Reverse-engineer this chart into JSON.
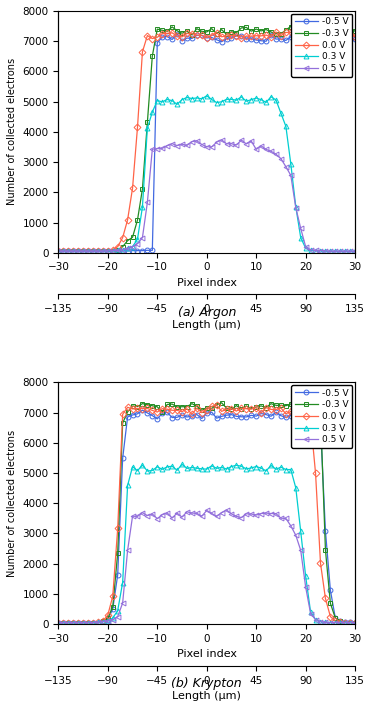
{
  "title_a": "(a) Argon",
  "title_b": "(b) Krypton",
  "ylabel": "Number of collected electrons",
  "xlabel_top": "Pixel index",
  "xlabel_bot": "Length (μm)",
  "ylim": [
    0,
    8000
  ],
  "yticks": [
    0,
    1000,
    2000,
    3000,
    4000,
    5000,
    6000,
    7000,
    8000
  ],
  "xlim_pixel": [
    -30,
    30
  ],
  "xticks_pixel": [
    -30,
    -20,
    -10,
    0,
    10,
    20,
    30
  ],
  "xlim_um": [
    -135,
    135
  ],
  "xticks_um": [
    -135,
    -90,
    -45,
    0,
    45,
    90,
    135
  ],
  "legend_labels": [
    "-0.5 V",
    "-0.3 V",
    "0.0 V",
    "0.3 V",
    "0.5 V"
  ],
  "colors": [
    "#4169E1",
    "#228B22",
    "#FF6347",
    "#00CED1",
    "#9370DB"
  ],
  "markers": [
    "o",
    "s",
    "D",
    "^",
    "<"
  ],
  "argon": {
    "neg05": {
      "x": [
        -30,
        -29,
        -28,
        -27,
        -26,
        -25,
        -24,
        -23,
        -22,
        -21,
        -20,
        -19,
        -18,
        -17,
        -16,
        -15,
        -14,
        -13,
        -12,
        -11,
        -10,
        -9,
        -8,
        -7,
        -6,
        -5,
        -4,
        -3,
        -2,
        -1,
        0,
        1,
        2,
        3,
        4,
        5,
        6,
        7,
        8,
        9,
        10,
        11,
        12,
        13,
        14,
        15,
        16,
        17,
        18,
        19,
        20,
        21,
        22,
        23,
        24,
        25,
        26,
        27,
        28,
        29,
        30
      ],
      "y": [
        50,
        50,
        50,
        50,
        50,
        50,
        50,
        50,
        50,
        50,
        60,
        60,
        60,
        60,
        60,
        70,
        70,
        70,
        80,
        80,
        7100,
        7100,
        7100,
        7100,
        7100,
        7100,
        7100,
        7100,
        7100,
        7100,
        7100,
        7100,
        7100,
        7100,
        7100,
        7100,
        7100,
        7100,
        7100,
        7100,
        7100,
        7100,
        7100,
        7100,
        7100,
        7100,
        7100,
        7100,
        7100,
        7100,
        7100,
        7100,
        7100,
        7100,
        7100,
        7100,
        7100,
        7100,
        7100,
        7100,
        7100
      ]
    },
    "neg03": {
      "x": [
        -30,
        -29,
        -28,
        -27,
        -26,
        -25,
        -24,
        -23,
        -22,
        -21,
        -20,
        -19,
        -18,
        -17,
        -16,
        -15,
        -14,
        -13,
        -12,
        -11,
        -10,
        -9,
        -8,
        -7,
        -6,
        -5,
        -4,
        -3,
        -2,
        -1,
        0,
        1,
        2,
        3,
        4,
        5,
        6,
        7,
        8,
        9,
        10,
        11,
        12,
        13,
        14,
        15,
        16,
        17,
        18,
        19,
        20,
        21,
        22,
        23,
        24,
        25,
        26,
        27,
        28,
        29,
        30
      ],
      "y": [
        50,
        50,
        50,
        50,
        50,
        50,
        50,
        50,
        50,
        50,
        60,
        70,
        100,
        200,
        400,
        600,
        1050,
        2100,
        4300,
        6600,
        7300,
        7350,
        7350,
        7350,
        7350,
        7350,
        7350,
        7350,
        7350,
        7350,
        7350,
        7350,
        7350,
        7350,
        7350,
        7350,
        7350,
        7350,
        7350,
        7350,
        7350,
        7350,
        7350,
        7350,
        7350,
        7350,
        7350,
        7350,
        7350,
        7350,
        7350,
        7350,
        7350,
        7350,
        7350,
        7350,
        7350,
        7350,
        7350,
        7350,
        7350
      ]
    },
    "zero": {
      "x": [
        -30,
        -29,
        -28,
        -27,
        -26,
        -25,
        -24,
        -23,
        -22,
        -21,
        -20,
        -19,
        -18,
        -17,
        -16,
        -15,
        -14,
        -13,
        -12,
        -11,
        -10,
        -9,
        -8,
        -7,
        -6,
        -5,
        -4,
        -3,
        -2,
        -1,
        0,
        1,
        2,
        3,
        4,
        5,
        6,
        7,
        8,
        9,
        10,
        11,
        12,
        13,
        14,
        15,
        16,
        17,
        18,
        19,
        20,
        21,
        22,
        23,
        24,
        25,
        26,
        27,
        28,
        29,
        30
      ],
      "y": [
        50,
        50,
        50,
        50,
        50,
        50,
        50,
        50,
        50,
        50,
        70,
        100,
        200,
        500,
        1100,
        2100,
        4100,
        6600,
        7200,
        7200,
        7200,
        7200,
        7200,
        7200,
        7200,
        7200,
        7200,
        7200,
        7200,
        7200,
        7200,
        7200,
        7200,
        7200,
        7200,
        7200,
        7200,
        7200,
        7200,
        7200,
        7200,
        7200,
        7200,
        7200,
        7200,
        7200,
        7200,
        7200,
        7200,
        7200,
        7200,
        7200,
        7200,
        7200,
        7200,
        7200,
        7200,
        7200,
        7200,
        7200,
        7200
      ]
    },
    "pos03": {
      "x": [
        -30,
        -29,
        -28,
        -27,
        -26,
        -25,
        -24,
        -23,
        -22,
        -21,
        -20,
        -19,
        -18,
        -17,
        -16,
        -15,
        -14,
        -13,
        -12,
        -11,
        -10,
        -9,
        -8,
        -7,
        -6,
        -5,
        -4,
        -3,
        -2,
        -1,
        0,
        1,
        2,
        3,
        4,
        5,
        6,
        7,
        8,
        9,
        10,
        11,
        12,
        13,
        14,
        15,
        16,
        17,
        18,
        19,
        20,
        21,
        22,
        23,
        24,
        25,
        26,
        27,
        28,
        29,
        30
      ],
      "y": [
        50,
        50,
        50,
        50,
        50,
        50,
        50,
        50,
        50,
        50,
        60,
        70,
        80,
        100,
        150,
        200,
        450,
        1500,
        4200,
        4650,
        5100,
        5050,
        5100,
        5150,
        5000,
        5050,
        5100,
        5050,
        5150,
        5050,
        5100,
        5000,
        5050,
        5100,
        5050,
        5000,
        5050,
        5100,
        5000,
        5050,
        5100,
        5050,
        5000,
        5050,
        5000,
        4650,
        4200,
        3000,
        1500,
        500,
        150,
        80,
        70,
        60,
        50,
        50,
        50,
        50,
        50,
        50,
        50
      ]
    },
    "pos05": {
      "x": [
        -30,
        -29,
        -28,
        -27,
        -26,
        -25,
        -24,
        -23,
        -22,
        -21,
        -20,
        -19,
        -18,
        -17,
        -16,
        -15,
        -14,
        -13,
        -12,
        -11,
        -10,
        -9,
        -8,
        -7,
        -6,
        -5,
        -4,
        -3,
        -2,
        -1,
        0,
        1,
        2,
        3,
        4,
        5,
        6,
        7,
        8,
        9,
        10,
        11,
        12,
        13,
        14,
        15,
        16,
        17,
        18,
        19,
        20,
        21,
        22,
        23,
        24,
        25,
        26,
        27,
        28,
        29,
        30
      ],
      "y": [
        50,
        50,
        50,
        50,
        50,
        50,
        50,
        50,
        50,
        50,
        60,
        70,
        80,
        100,
        150,
        200,
        300,
        500,
        1700,
        3400,
        3450,
        3500,
        3550,
        3600,
        3500,
        3550,
        3600,
        3650,
        3700,
        3600,
        3550,
        3500,
        3600,
        3650,
        3700,
        3550,
        3600,
        3700,
        3600,
        3650,
        3450,
        3500,
        3400,
        3400,
        3200,
        3100,
        2900,
        2500,
        1500,
        700,
        200,
        100,
        80,
        70,
        60,
        50,
        50,
        50,
        50,
        50,
        50
      ]
    }
  },
  "krypton": {
    "neg05": {
      "x": [
        -30,
        -29,
        -28,
        -27,
        -26,
        -25,
        -24,
        -23,
        -22,
        -21,
        -20,
        -19,
        -18,
        -17,
        -16,
        -15,
        -14,
        -13,
        -12,
        -11,
        -10,
        -9,
        -8,
        -7,
        -6,
        -5,
        -4,
        -3,
        -2,
        -1,
        0,
        1,
        2,
        3,
        4,
        5,
        6,
        7,
        8,
        9,
        10,
        11,
        12,
        13,
        14,
        15,
        16,
        17,
        18,
        19,
        20,
        21,
        22,
        23,
        24,
        25,
        26,
        27,
        28,
        29,
        30
      ],
      "y": [
        50,
        50,
        50,
        50,
        50,
        50,
        50,
        50,
        50,
        80,
        150,
        500,
        1600,
        5500,
        6800,
        6900,
        6950,
        6950,
        6950,
        6900,
        6850,
        6900,
        6950,
        6900,
        6850,
        6900,
        6950,
        6900,
        6850,
        6900,
        6950,
        6900,
        6850,
        6900,
        6900,
        6900,
        6850,
        6950,
        6900,
        6900,
        6900,
        6900,
        6950,
        6900,
        6900,
        6900,
        6900,
        6900,
        6950,
        6900,
        6900,
        6800,
        6700,
        6600,
        3000,
        1000,
        200,
        100,
        70,
        60,
        50
      ]
    },
    "neg03": {
      "x": [
        -30,
        -29,
        -28,
        -27,
        -26,
        -25,
        -24,
        -23,
        -22,
        -21,
        -20,
        -19,
        -18,
        -17,
        -16,
        -15,
        -14,
        -13,
        -12,
        -11,
        -10,
        -9,
        -8,
        -7,
        -6,
        -5,
        -4,
        -3,
        -2,
        -1,
        0,
        1,
        2,
        3,
        4,
        5,
        6,
        7,
        8,
        9,
        10,
        11,
        12,
        13,
        14,
        15,
        16,
        17,
        18,
        19,
        20,
        21,
        22,
        23,
        24,
        25,
        26,
        27,
        28,
        29,
        30
      ],
      "y": [
        50,
        50,
        50,
        50,
        50,
        50,
        50,
        50,
        50,
        100,
        200,
        600,
        2400,
        6700,
        7100,
        7200,
        7200,
        7200,
        7200,
        7200,
        7200,
        7200,
        7200,
        7200,
        7200,
        7200,
        7200,
        7200,
        7200,
        7200,
        7200,
        7200,
        7200,
        7200,
        7200,
        7200,
        7200,
        7200,
        7200,
        7200,
        7200,
        7200,
        7200,
        7200,
        7200,
        7200,
        7200,
        7200,
        7200,
        7200,
        7200,
        7150,
        7100,
        7000,
        2400,
        600,
        200,
        100,
        50,
        50,
        50
      ]
    },
    "zero": {
      "x": [
        -30,
        -29,
        -28,
        -27,
        -26,
        -25,
        -24,
        -23,
        -22,
        -21,
        -20,
        -19,
        -18,
        -17,
        -16,
        -15,
        -14,
        -13,
        -12,
        -11,
        -10,
        -9,
        -8,
        -7,
        -6,
        -5,
        -4,
        -3,
        -2,
        -1,
        0,
        1,
        2,
        3,
        4,
        5,
        6,
        7,
        8,
        9,
        10,
        11,
        12,
        13,
        14,
        15,
        16,
        17,
        18,
        19,
        20,
        21,
        22,
        23,
        24,
        25,
        26,
        27,
        28,
        29,
        30
      ],
      "y": [
        50,
        50,
        50,
        50,
        50,
        50,
        50,
        50,
        60,
        100,
        300,
        900,
        3200,
        7000,
        7100,
        7150,
        7150,
        7150,
        7150,
        7100,
        7050,
        7100,
        7100,
        7100,
        7050,
        7100,
        7100,
        7100,
        7100,
        7050,
        7100,
        7100,
        7100,
        7050,
        7100,
        7100,
        7100,
        7050,
        7100,
        7100,
        7100,
        7050,
        7100,
        7100,
        7100,
        7100,
        7050,
        7000,
        6950,
        6950,
        6900,
        6700,
        5000,
        2000,
        800,
        250,
        100,
        60,
        50,
        50,
        50
      ]
    },
    "pos03": {
      "x": [
        -30,
        -29,
        -28,
        -27,
        -26,
        -25,
        -24,
        -23,
        -22,
        -21,
        -20,
        -19,
        -18,
        -17,
        -16,
        -15,
        -14,
        -13,
        -12,
        -11,
        -10,
        -9,
        -8,
        -7,
        -6,
        -5,
        -4,
        -3,
        -2,
        -1,
        0,
        1,
        2,
        3,
        4,
        5,
        6,
        7,
        8,
        9,
        10,
        11,
        12,
        13,
        14,
        15,
        16,
        17,
        18,
        19,
        20,
        21,
        22,
        23,
        24,
        25,
        26,
        27,
        28,
        29,
        30
      ],
      "y": [
        50,
        50,
        50,
        50,
        50,
        50,
        50,
        50,
        60,
        80,
        100,
        200,
        450,
        1400,
        4600,
        5100,
        5200,
        5200,
        5150,
        5100,
        5200,
        5200,
        5200,
        5150,
        5100,
        5200,
        5200,
        5200,
        5100,
        5200,
        5200,
        5200,
        5150,
        5100,
        5200,
        5200,
        5200,
        5200,
        5100,
        5200,
        5200,
        5200,
        5100,
        5200,
        5200,
        5200,
        5100,
        5100,
        4600,
        3000,
        1500,
        400,
        150,
        80,
        60,
        50,
        50,
        50,
        50,
        50,
        50
      ]
    },
    "pos05": {
      "x": [
        -30,
        -29,
        -28,
        -27,
        -26,
        -25,
        -24,
        -23,
        -22,
        -21,
        -20,
        -19,
        -18,
        -17,
        -16,
        -15,
        -14,
        -13,
        -12,
        -11,
        -10,
        -9,
        -8,
        -7,
        -6,
        -5,
        -4,
        -3,
        -2,
        -1,
        0,
        1,
        2,
        3,
        4,
        5,
        6,
        7,
        8,
        9,
        10,
        11,
        12,
        13,
        14,
        15,
        16,
        17,
        18,
        19,
        20,
        21,
        22,
        23,
        24,
        25,
        26,
        27,
        28,
        29,
        30
      ],
      "y": [
        50,
        50,
        50,
        50,
        50,
        50,
        50,
        50,
        60,
        80,
        100,
        150,
        250,
        700,
        2500,
        3500,
        3600,
        3600,
        3500,
        3600,
        3600,
        3700,
        3700,
        3600,
        3600,
        3650,
        3700,
        3700,
        3600,
        3650,
        3700,
        3650,
        3600,
        3650,
        3700,
        3700,
        3600,
        3650,
        3700,
        3700,
        3600,
        3650,
        3700,
        3700,
        3600,
        3500,
        3400,
        3200,
        3000,
        2500,
        1200,
        350,
        150,
        80,
        60,
        50,
        50,
        50,
        50,
        50,
        50
      ]
    }
  }
}
